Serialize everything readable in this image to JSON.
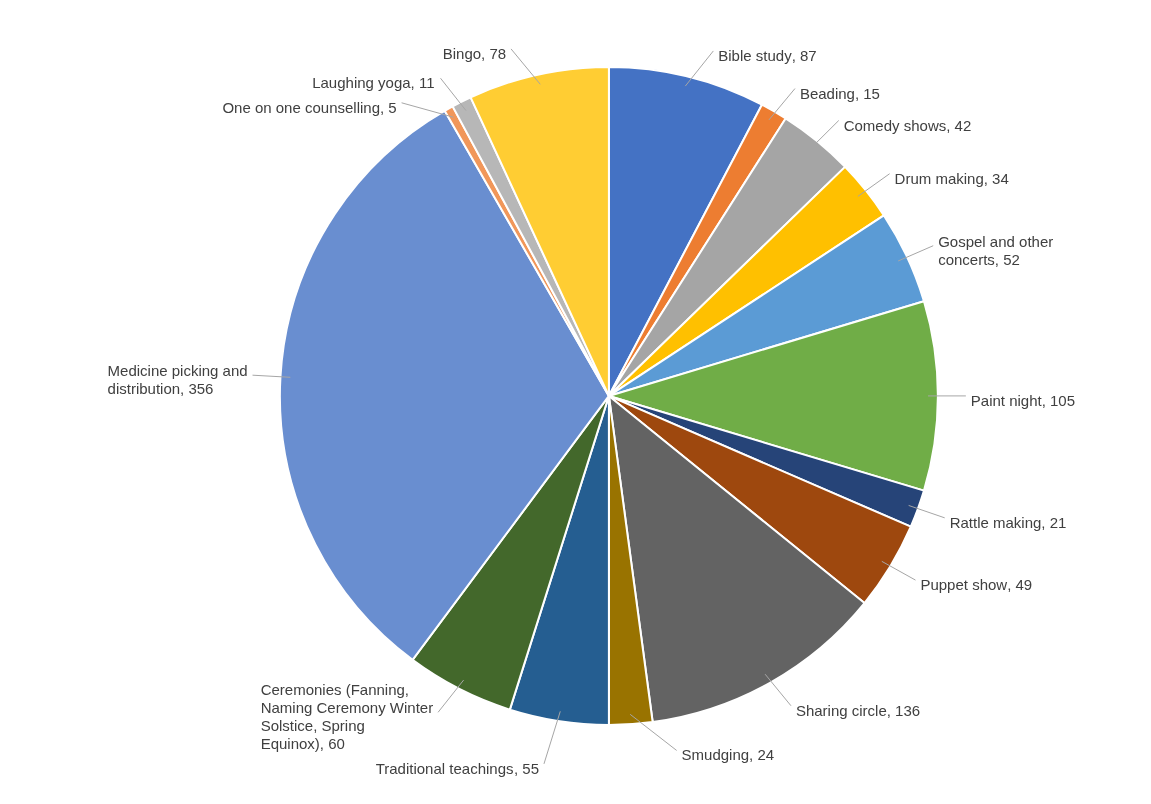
{
  "chart_data": {
    "type": "pie",
    "categories": [
      "Bible study ",
      "Beading ",
      "Comedy shows",
      "Drum making ",
      "Gospel and other concerts",
      "Paint night",
      "Rattle making",
      "Puppet show",
      "Sharing circle",
      "Smudging",
      "Traditional teachings",
      "Ceremonies (Fanning, Naming Ceremony Winter Solstice, Spring Equinox)",
      "Medicine picking and distribution ",
      "One on one counselling",
      "Laughing yoga",
      "Bingo"
    ],
    "values": [
      87,
      15,
      42,
      34,
      52,
      105,
      21,
      49,
      136,
      24,
      55,
      60,
      356,
      5,
      11,
      78
    ],
    "value_labels": [
      ", 87",
      ", 15",
      ", 42",
      ", 34",
      ", 52",
      ", 105",
      ", 21",
      ", 49",
      ", 136",
      ", 24",
      ", 55",
      ", 60",
      ", 356",
      ", 5",
      ", 11",
      ", 78"
    ],
    "colors": [
      "#4472c4",
      "#ed7d31",
      "#a5a5a5",
      "#ffc000",
      "#5b9bd5",
      "#70ad47",
      "#264478",
      "#9e480e",
      "#636363",
      "#997300",
      "#255e91",
      "#43682b",
      "#698ed0",
      "#f1975a",
      "#b7b7b7",
      "#ffcd33"
    ],
    "legend": false
  }
}
